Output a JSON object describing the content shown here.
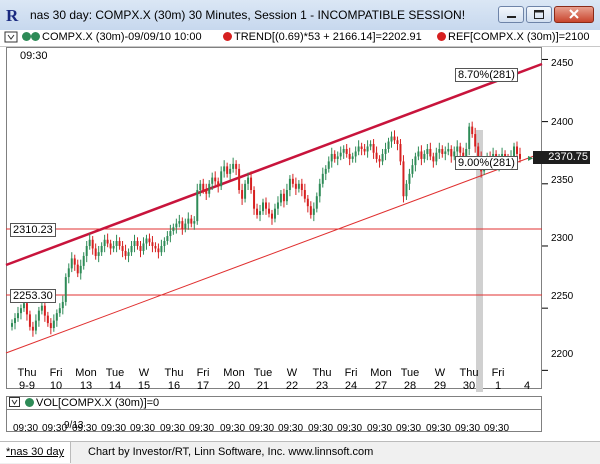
{
  "window": {
    "title": "nas 30 day: COMPX.X (30m) 30 Minutes, Session 1 - INCOMPATIBLE SESSION!",
    "icon": "R"
  },
  "legend": {
    "symbol": "COMPX.X (30m)-09/09/10 10:00",
    "trend": "TREND[(0.69)*53 + 2166.14]=2202.91",
    "ref": "REF[COMPX.X (30m)]=2100",
    "colors": {
      "symbol_dot": "#2e8b57",
      "trend_dot": "#d62020",
      "ref_dot": "#d62020"
    }
  },
  "chart": {
    "top_time": "09:30",
    "last_price": "2370.75",
    "level_1": "2310.23",
    "level_2": "2253.30",
    "channel_top_label": "8.70%(281)",
    "channel_bottom_label": "9.00%(281)",
    "y_ticks": [
      "2450",
      "2400",
      "2350",
      "2300",
      "2250",
      "2200"
    ],
    "x_days": [
      "Thu",
      "Fri",
      "Mon",
      "Tue",
      "W",
      "Thu",
      "Fri",
      "Mon",
      "Tue",
      "W",
      "Thu",
      "Fri",
      "Mon",
      "Tue",
      "W",
      "Thu",
      "Fri"
    ],
    "x_dates": [
      "9-9",
      "10",
      "13",
      "14",
      "15",
      "16",
      "17",
      "20",
      "21",
      "22",
      "23",
      "24",
      "27",
      "28",
      "29",
      "30",
      "1",
      "4"
    ],
    "colors": {
      "bull": "#2e8b57",
      "bear": "#d62020",
      "channel": "#c8143c",
      "support": "#e03030"
    }
  },
  "chart_data": {
    "type": "candlestick",
    "ylim": [
      2185,
      2460
    ],
    "y_ticks": [
      2450,
      2400,
      2350,
      2300,
      2250,
      2200
    ],
    "levels": [
      2310.23,
      2253.3
    ],
    "last": 2370.75,
    "closes": [
      2238,
      2242,
      2246,
      2250,
      2254,
      2245,
      2235,
      2232,
      2240,
      2248,
      2252,
      2244,
      2238,
      2234,
      2240,
      2246,
      2250,
      2255,
      2275,
      2282,
      2290,
      2285,
      2278,
      2284,
      2292,
      2300,
      2305,
      2298,
      2292,
      2295,
      2300,
      2305,
      2302,
      2298,
      2300,
      2304,
      2300,
      2296,
      2292,
      2295,
      2300,
      2304,
      2300,
      2296,
      2302,
      2306,
      2303,
      2300,
      2298,
      2295,
      2300,
      2304,
      2308,
      2312,
      2315,
      2318,
      2320,
      2314,
      2318,
      2322,
      2318,
      2320,
      2345,
      2350,
      2345,
      2342,
      2350,
      2355,
      2352,
      2348,
      2360,
      2364,
      2358,
      2362,
      2366,
      2362,
      2345,
      2338,
      2350,
      2355,
      2345,
      2330,
      2325,
      2328,
      2335,
      2330,
      2326,
      2322,
      2330,
      2335,
      2342,
      2336,
      2345,
      2354,
      2350,
      2346,
      2350,
      2345,
      2338,
      2332,
      2325,
      2330,
      2340,
      2350,
      2358,
      2362,
      2368,
      2374,
      2370,
      2372,
      2375,
      2378,
      2374,
      2370,
      2372,
      2376,
      2380,
      2378,
      2376,
      2380,
      2382,
      2375,
      2370,
      2368,
      2374,
      2378,
      2384,
      2388,
      2385,
      2382,
      2368,
      2340,
      2350,
      2358,
      2365,
      2372,
      2376,
      2370,
      2374,
      2378,
      2372,
      2368,
      2375,
      2378,
      2374,
      2376,
      2378,
      2372,
      2376,
      2380,
      2375,
      2372,
      2378,
      2396,
      2390,
      2380,
      2372,
      2360,
      2366,
      2372,
      2368,
      2374,
      2365,
      2370,
      2374,
      2370,
      2368,
      2372,
      2380,
      2374,
      2370
    ]
  },
  "volume": {
    "label": "VOL[COMPX.X (30m)]=0",
    "date_label": "9/13",
    "times": [
      "09:30",
      "09:30",
      "09:30",
      "09:30",
      "09:30",
      "09:30",
      "09:30",
      "09:30",
      "09:30",
      "09:30",
      "09:30",
      "09:30",
      "09:30",
      "09:30",
      "09:30",
      "09:30",
      "09:30"
    ]
  },
  "footer": {
    "tab": "*nas 30 day",
    "credit": "Chart by Investor/RT, Linn Software, Inc. www.linnsoft.com"
  }
}
